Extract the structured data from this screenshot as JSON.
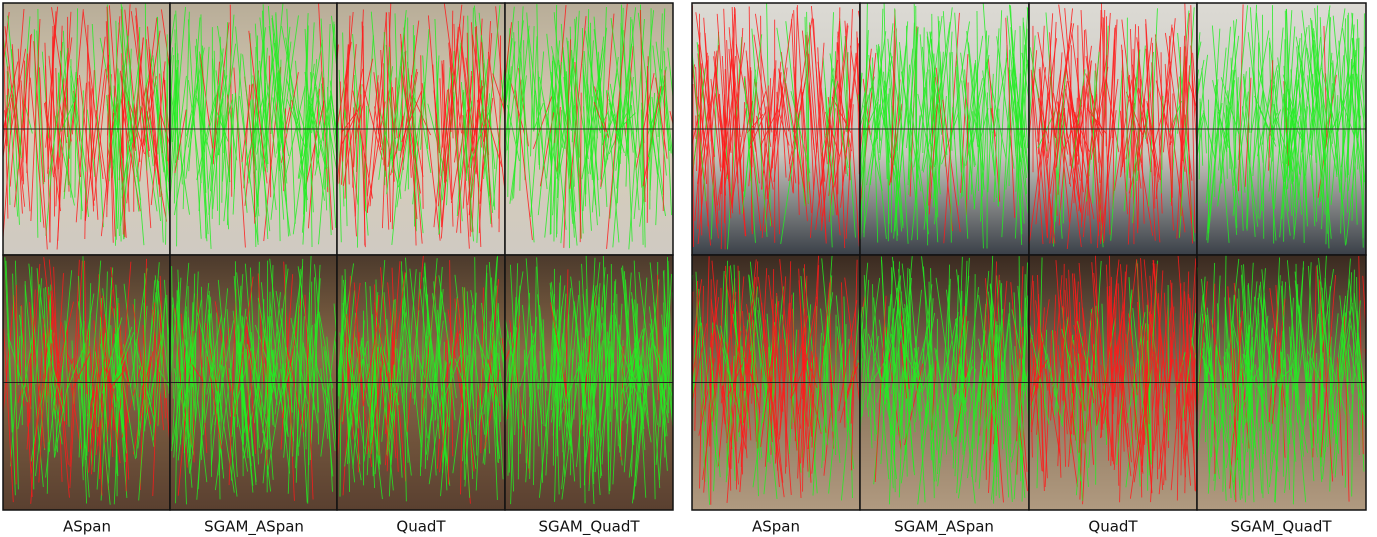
{
  "left_panel": {
    "captions": [
      "ASpan",
      "SGAM_ASpan",
      "QuadT",
      "SGAM_QuadT"
    ]
  },
  "right_panel": {
    "captions": [
      "ASpan",
      "SGAM_ASpan",
      "QuadT",
      "SGAM_QuadT"
    ]
  }
}
